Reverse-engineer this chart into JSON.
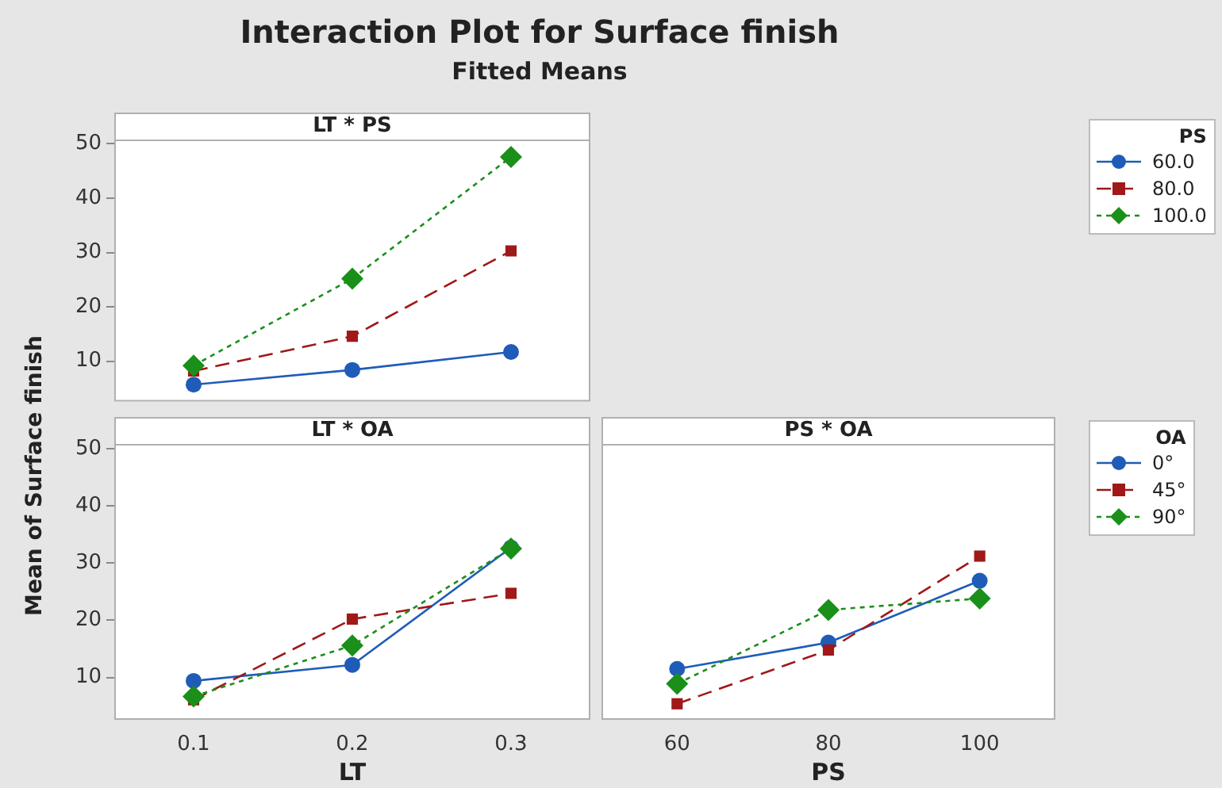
{
  "chart_data": [
    {
      "type": "line",
      "title": "LT * PS",
      "annotations": [
        "Interaction Plot for Surface finish",
        "Fitted Means"
      ],
      "categories": [
        "0.1",
        "0.2",
        "0.3"
      ],
      "ylim": [
        2.6,
        50.8
      ],
      "yticks": [
        10,
        20,
        30,
        40,
        50
      ],
      "tick_labels": "y",
      "grid": false,
      "legend": "right",
      "legend_title": "PS",
      "series": [
        {
          "name": "60.0",
          "color": "#1f5cb8",
          "marker": "circle",
          "line_style": "solid",
          "values": [
            5.7,
            8.4,
            11.7
          ]
        },
        {
          "name": "80.0",
          "color": "#a01818",
          "marker": "square",
          "line_style": "dashed",
          "values": [
            8.2,
            14.6,
            30.3
          ]
        },
        {
          "name": "100.0",
          "color": "#1a8f1a",
          "marker": "diamond",
          "line_style": "dotted",
          "values": [
            9.2,
            25.2,
            47.6
          ]
        }
      ]
    },
    {
      "type": "line",
      "title": "LT * OA",
      "xlabel": "LT",
      "ylabel": "Mean of Surface finish",
      "categories": [
        "0.1",
        "0.2",
        "0.3"
      ],
      "ylim": [
        2.6,
        50.8
      ],
      "yticks": [
        10,
        20,
        30,
        40,
        50
      ],
      "grid": false,
      "legend": false,
      "series": [
        {
          "color": "#1f5cb8",
          "marker": "circle",
          "line_style": "solid",
          "values": [
            9.4,
            12.2,
            32.7
          ]
        },
        {
          "color": "#a01818",
          "marker": "square",
          "line_style": "dashed",
          "values": [
            6.1,
            20.2,
            24.7
          ]
        },
        {
          "color": "#1a8f1a",
          "marker": "diamond",
          "line_style": "dotted",
          "values": [
            6.7,
            15.6,
            32.5
          ]
        }
      ]
    },
    {
      "type": "line",
      "title": "PS * OA",
      "xlabel": "PS",
      "categories": [
        "60",
        "80",
        "100"
      ],
      "ylim": [
        2.6,
        50.8
      ],
      "yticks": [
        10,
        20,
        30,
        40,
        50
      ],
      "tick_labels": "x",
      "grid": false,
      "legend": "right",
      "legend_title": "OA",
      "series": [
        {
          "name": "0°",
          "color": "#1f5cb8",
          "marker": "circle",
          "line_style": "solid",
          "values": [
            11.5,
            16.1,
            26.9
          ]
        },
        {
          "name": "45°",
          "color": "#a01818",
          "marker": "square",
          "line_style": "dashed",
          "values": [
            5.4,
            14.8,
            31.2
          ]
        },
        {
          "name": "90°",
          "color": "#1a8f1a",
          "marker": "diamond",
          "line_style": "dotted",
          "values": [
            8.9,
            21.8,
            23.8
          ]
        }
      ]
    }
  ]
}
